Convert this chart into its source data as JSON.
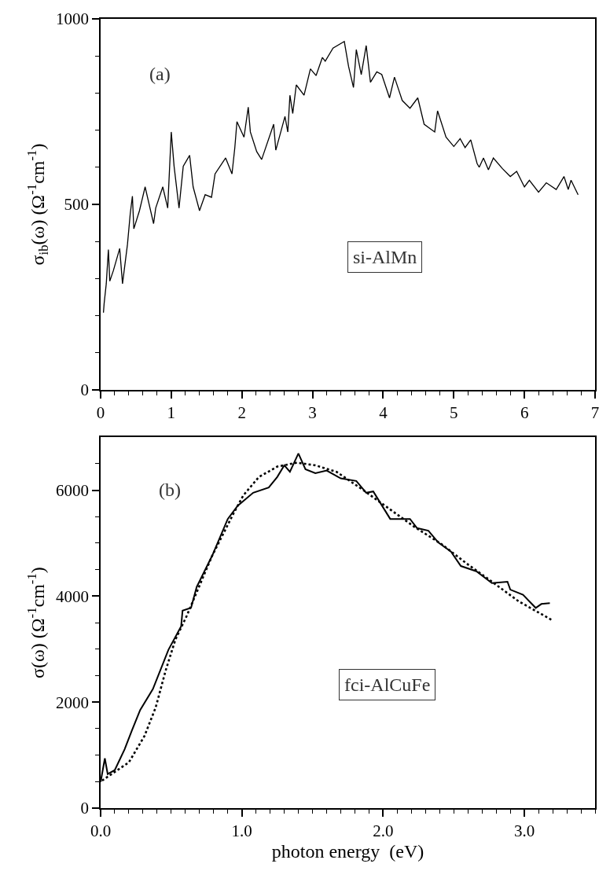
{
  "chart_data": [
    {
      "type": "line",
      "ylabel": "σ$_{ib}$(ω) (Ω$^{-1}$cm$^{-1}$)",
      "annotations": [
        "(a)",
        "si-AlMn"
      ],
      "xlim": [
        0,
        7
      ],
      "ylim": [
        0,
        1000
      ],
      "xticks": [
        0,
        {
          "value": 0.2,
          "label": null
        },
        {
          "value": 0.4,
          "label": null
        },
        {
          "value": 0.6,
          "label": null
        },
        {
          "value": 0.8,
          "label": null
        },
        1,
        {
          "value": 1.2,
          "label": null
        },
        {
          "value": 1.4,
          "label": null
        },
        {
          "value": 1.6,
          "label": null
        },
        {
          "value": 1.8,
          "label": null
        },
        2,
        {
          "value": 2.2,
          "label": null
        },
        {
          "value": 2.4,
          "label": null
        },
        {
          "value": 2.6,
          "label": null
        },
        {
          "value": 2.8,
          "label": null
        },
        3,
        {
          "value": 3.2,
          "label": null
        },
        {
          "value": 3.4,
          "label": null
        },
        {
          "value": 3.6,
          "label": null
        },
        {
          "value": 3.8,
          "label": null
        },
        4,
        {
          "value": 4.2,
          "label": null
        },
        {
          "value": 4.4,
          "label": null
        },
        {
          "value": 4.6,
          "label": null
        },
        {
          "value": 4.8,
          "label": null
        },
        5,
        {
          "value": 5.2,
          "label": null
        },
        {
          "value": 5.4,
          "label": null
        },
        {
          "value": 5.6,
          "label": null
        },
        {
          "value": 5.8,
          "label": null
        },
        6,
        {
          "value": 6.2,
          "label": null
        },
        {
          "value": 6.4,
          "label": null
        },
        {
          "value": 6.6,
          "label": null
        },
        {
          "value": 6.8,
          "label": null
        },
        7
      ],
      "yticks": [
        0,
        {
          "value": 100,
          "label": null
        },
        {
          "value": 200,
          "label": null
        },
        {
          "value": 300,
          "label": null
        },
        {
          "value": 400,
          "label": null
        },
        500,
        {
          "value": 600,
          "label": null
        },
        {
          "value": 700,
          "label": null
        },
        {
          "value": 800,
          "label": null
        },
        {
          "value": 900,
          "label": null
        },
        1000
      ],
      "series": [
        {
          "color": "#000000",
          "line_style": "solid",
          "x": [
            0.04,
            0.05,
            0.08,
            0.11,
            0.13,
            0.18,
            0.27,
            0.31,
            0.38,
            0.42,
            0.45,
            0.47,
            0.55,
            0.63,
            0.75,
            0.78,
            0.88,
            0.95,
            1.0,
            1.04,
            1.11,
            1.17,
            1.26,
            1.31,
            1.4,
            1.48,
            1.57,
            1.62,
            1.77,
            1.86,
            1.9,
            1.93,
            2.03,
            2.09,
            2.12,
            2.21,
            2.28,
            2.45,
            2.48,
            2.61,
            2.65,
            2.68,
            2.72,
            2.77,
            2.88,
            2.97,
            3.05,
            3.14,
            3.18,
            3.29,
            3.45,
            3.51,
            3.58,
            3.62,
            3.69,
            3.76,
            3.82,
            3.91,
            3.98,
            4.09,
            4.16,
            4.27,
            4.38,
            4.49,
            4.58,
            4.73,
            4.77,
            4.89,
            5.0,
            5.09,
            5.16,
            5.24,
            5.33,
            5.36,
            5.42,
            5.49,
            5.56,
            5.69,
            5.8,
            5.89,
            6.0,
            6.07,
            6.2,
            6.31,
            6.45,
            6.56,
            6.62,
            6.66,
            6.76
          ],
          "values": [
            208,
            233,
            286,
            378,
            293,
            321,
            381,
            286,
            392,
            476,
            522,
            434,
            483,
            547,
            448,
            490,
            547,
            490,
            695,
            603,
            490,
            603,
            632,
            547,
            483,
            526,
            519,
            582,
            625,
            582,
            653,
            723,
            681,
            762,
            695,
            642,
            621,
            716,
            646,
            737,
            695,
            794,
            745,
            822,
            794,
            865,
            847,
            896,
            886,
            921,
            939,
            872,
            815,
            917,
            850,
            928,
            829,
            857,
            850,
            787,
            843,
            780,
            759,
            787,
            716,
            695,
            752,
            681,
            656,
            677,
            653,
            674,
            610,
            600,
            625,
            593,
            625,
            596,
            575,
            589,
            547,
            565,
            533,
            558,
            540,
            575,
            540,
            565,
            526
          ]
        }
      ]
    },
    {
      "type": "line",
      "xlabel": "photon energy  (eV)",
      "ylabel": "σ(ω) (Ω$^{-1}$cm$^{-1}$)",
      "annotations": [
        "(b)",
        "fci-AlCuFe"
      ],
      "xlim": [
        0,
        3.5
      ],
      "ylim": [
        0,
        7000
      ],
      "xticks": [
        {
          "value": 0,
          "label": "0.0"
        },
        {
          "value": 0.1,
          "label": null
        },
        {
          "value": 0.2,
          "label": null
        },
        {
          "value": 0.3,
          "label": null
        },
        {
          "value": 0.4,
          "label": null
        },
        {
          "value": 0.5,
          "label": null
        },
        {
          "value": 0.6,
          "label": null
        },
        {
          "value": 0.7,
          "label": null
        },
        {
          "value": 0.8,
          "label": null
        },
        {
          "value": 0.9,
          "label": null
        },
        {
          "value": 1,
          "label": "1.0"
        },
        {
          "value": 1.1,
          "label": null
        },
        {
          "value": 1.2,
          "label": null
        },
        {
          "value": 1.3,
          "label": null
        },
        {
          "value": 1.4,
          "label": null
        },
        {
          "value": 1.5,
          "label": null
        },
        {
          "value": 1.6,
          "label": null
        },
        {
          "value": 1.7,
          "label": null
        },
        {
          "value": 1.8,
          "label": null
        },
        {
          "value": 1.9,
          "label": null
        },
        {
          "value": 2,
          "label": "2.0"
        },
        {
          "value": 2.1,
          "label": null
        },
        {
          "value": 2.2,
          "label": null
        },
        {
          "value": 2.3,
          "label": null
        },
        {
          "value": 2.4,
          "label": null
        },
        {
          "value": 2.5,
          "label": null
        },
        {
          "value": 2.6,
          "label": null
        },
        {
          "value": 2.7,
          "label": null
        },
        {
          "value": 2.8,
          "label": null
        },
        {
          "value": 2.9,
          "label": null
        },
        {
          "value": 3,
          "label": "3.0"
        },
        {
          "value": 3.1,
          "label": null
        },
        {
          "value": 3.2,
          "label": null
        },
        {
          "value": 3.3,
          "label": null
        },
        {
          "value": 3.4,
          "label": null
        },
        {
          "value": 3.5,
          "label": null
        }
      ],
      "yticks": [
        0,
        {
          "value": 500,
          "label": null
        },
        {
          "value": 1000,
          "label": null
        },
        {
          "value": 1500,
          "label": null
        },
        2000,
        {
          "value": 2500,
          "label": null
        },
        {
          "value": 3000,
          "label": null
        },
        {
          "value": 3500,
          "label": null
        },
        4000,
        {
          "value": 4500,
          "label": null
        },
        {
          "value": 5000,
          "label": null
        },
        {
          "value": 5500,
          "label": null
        },
        6000,
        {
          "value": 6500,
          "label": null
        }
      ],
      "series": [
        {
          "color": "#000000",
          "line_style": "solid",
          "x": [
            0.0,
            0.03,
            0.05,
            0.1,
            0.17,
            0.22,
            0.28,
            0.37,
            0.48,
            0.57,
            0.58,
            0.64,
            0.68,
            0.79,
            0.9,
            0.97,
            1.08,
            1.19,
            1.25,
            1.3,
            1.34,
            1.4,
            1.45,
            1.52,
            1.6,
            1.7,
            1.81,
            1.88,
            1.93,
            1.97,
            2.05,
            2.19,
            2.24,
            2.32,
            2.39,
            2.48,
            2.55,
            2.66,
            2.77,
            2.88,
            2.9,
            2.99,
            3.08,
            3.12,
            3.18
          ],
          "values": [
            494,
            938,
            642,
            716,
            1111,
            1457,
            1852,
            2247,
            2988,
            3432,
            3728,
            3778,
            4173,
            4765,
            5457,
            5704,
            5951,
            6049,
            6247,
            6469,
            6346,
            6691,
            6395,
            6321,
            6370,
            6222,
            6173,
            5951,
            5975,
            5802,
            5457,
            5457,
            5284,
            5235,
            5012,
            4840,
            4568,
            4469,
            4247,
            4272,
            4123,
            4025,
            3778,
            3852,
            3867
          ]
        },
        {
          "color": "#000000",
          "line_style": "dotted",
          "x": [
            0.01,
            0.2,
            0.31,
            0.39,
            0.46,
            0.53,
            0.61,
            0.68,
            0.79,
            0.94,
            1.01,
            1.12,
            1.25,
            1.39,
            1.52,
            1.67,
            1.86,
            2.04,
            2.22,
            2.41,
            2.59,
            2.77,
            2.96,
            3.19
          ],
          "values": [
            519,
            864,
            1358,
            1901,
            2593,
            3185,
            3630,
            4074,
            4765,
            5556,
            5901,
            6247,
            6444,
            6519,
            6469,
            6346,
            6000,
            5654,
            5309,
            4988,
            4617,
            4272,
            3901,
            3556
          ]
        }
      ]
    }
  ]
}
